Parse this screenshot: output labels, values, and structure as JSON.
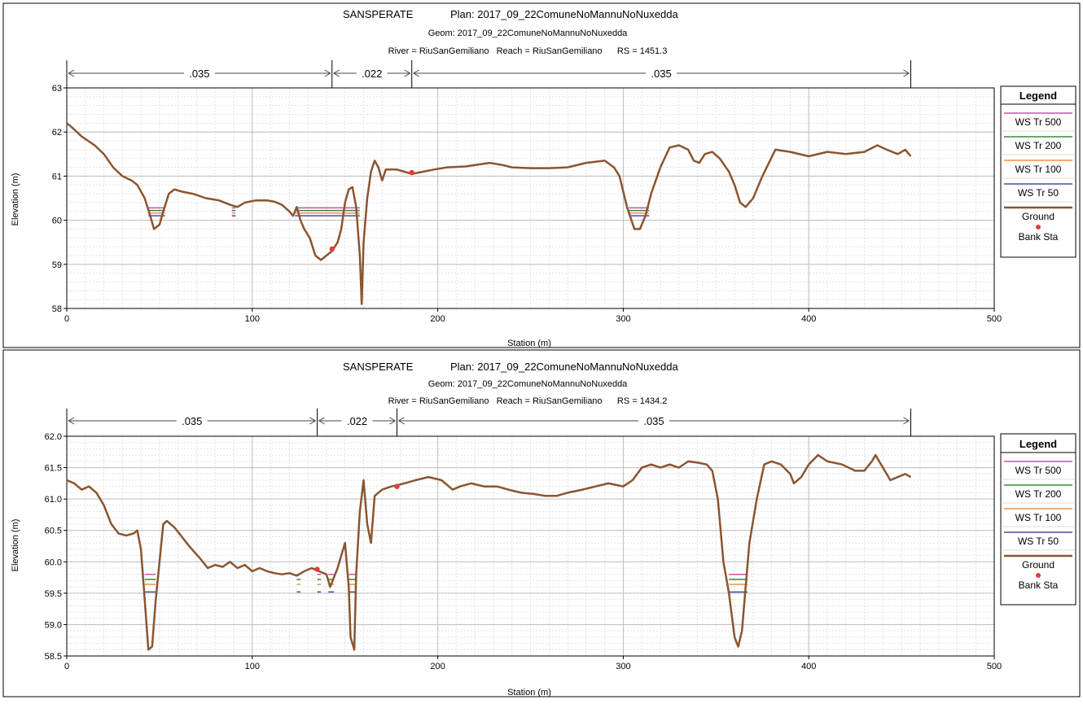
{
  "colors": {
    "ws500": "#c850b4",
    "ws200": "#3a8a3a",
    "ws100": "#f0904a",
    "ws50": "#4a4aa8",
    "ground": "#8a5530",
    "bank": "#e83a3a",
    "grid": "#c8c8c8"
  },
  "chart_data": [
    {
      "type": "line",
      "title": "SANSPERATE",
      "plan": "Plan: 2017_09_22ComuneNoMannuNoNuxedda",
      "geom": "Geom: 2017_09_22ComuneNoMannuNoNuxedda",
      "river_line": "River = RiuSanGemiliano   Reach = RiuSanGemiliano      RS = 1451.3",
      "xlabel": "Station (m)",
      "ylabel": "Elevation (m)",
      "xlim": [
        0,
        500
      ],
      "ylim": [
        58,
        63
      ],
      "x_ticks": [
        "0",
        "100",
        "200",
        "300",
        "400",
        "500"
      ],
      "y_ticks": [
        "58",
        "59",
        "60",
        "61",
        "62",
        "63"
      ],
      "y_tick_values": [
        58,
        59,
        60,
        61,
        62,
        63
      ],
      "grid": true,
      "legend_title": "Legend",
      "legend": [
        "WS Tr 500",
        "WS Tr 200",
        "WS Tr 100",
        "WS Tr 50",
        "Ground",
        "Bank Sta"
      ],
      "mannings": [
        {
          "label": ".035",
          "from": 0,
          "to": 143
        },
        {
          "label": ".022",
          "from": 143,
          "to": 186
        },
        {
          "label": ".035",
          "from": 186,
          "to": 455
        }
      ],
      "ground": [
        [
          0,
          62.2
        ],
        [
          3,
          62.1
        ],
        [
          8,
          61.9
        ],
        [
          15,
          61.7
        ],
        [
          20,
          61.5
        ],
        [
          25,
          61.2
        ],
        [
          30,
          61.0
        ],
        [
          35,
          60.9
        ],
        [
          38,
          60.8
        ],
        [
          42,
          60.5
        ],
        [
          45,
          60.1
        ],
        [
          47,
          59.8
        ],
        [
          50,
          59.9
        ],
        [
          52,
          60.2
        ],
        [
          55,
          60.6
        ],
        [
          58,
          60.7
        ],
        [
          62,
          60.65
        ],
        [
          68,
          60.6
        ],
        [
          75,
          60.5
        ],
        [
          82,
          60.45
        ],
        [
          88,
          60.35
        ],
        [
          92,
          60.3
        ],
        [
          96,
          60.4
        ],
        [
          102,
          60.45
        ],
        [
          108,
          60.45
        ],
        [
          112,
          60.42
        ],
        [
          116,
          60.35
        ],
        [
          120,
          60.2
        ],
        [
          122,
          60.1
        ],
        [
          124,
          60.3
        ],
        [
          126,
          60.0
        ],
        [
          128,
          59.8
        ],
        [
          131,
          59.6
        ],
        [
          134,
          59.2
        ],
        [
          137,
          59.1
        ],
        [
          140,
          59.2
        ],
        [
          143,
          59.3
        ],
        [
          146,
          59.5
        ],
        [
          148,
          59.8
        ],
        [
          150,
          60.4
        ],
        [
          152,
          60.7
        ],
        [
          154,
          60.75
        ],
        [
          156,
          60.3
        ],
        [
          158,
          59.2
        ],
        [
          159,
          58.1
        ],
        [
          160,
          59.5
        ],
        [
          162,
          60.5
        ],
        [
          164,
          61.1
        ],
        [
          166,
          61.35
        ],
        [
          168,
          61.2
        ],
        [
          170,
          60.9
        ],
        [
          172,
          61.15
        ],
        [
          178,
          61.15
        ],
        [
          182,
          61.1
        ],
        [
          186,
          61.05
        ],
        [
          192,
          61.1
        ],
        [
          198,
          61.15
        ],
        [
          205,
          61.2
        ],
        [
          215,
          61.22
        ],
        [
          228,
          61.3
        ],
        [
          235,
          61.25
        ],
        [
          240,
          61.2
        ],
        [
          250,
          61.18
        ],
        [
          260,
          61.18
        ],
        [
          270,
          61.2
        ],
        [
          280,
          61.3
        ],
        [
          290,
          61.35
        ],
        [
          295,
          61.2
        ],
        [
          298,
          61.0
        ],
        [
          302,
          60.3
        ],
        [
          306,
          59.8
        ],
        [
          309,
          59.8
        ],
        [
          312,
          60.1
        ],
        [
          315,
          60.6
        ],
        [
          320,
          61.2
        ],
        [
          325,
          61.65
        ],
        [
          330,
          61.7
        ],
        [
          335,
          61.6
        ],
        [
          338,
          61.35
        ],
        [
          341,
          61.3
        ],
        [
          344,
          61.5
        ],
        [
          348,
          61.55
        ],
        [
          352,
          61.4
        ],
        [
          357,
          61.1
        ],
        [
          360,
          60.8
        ],
        [
          363,
          60.4
        ],
        [
          366,
          60.3
        ],
        [
          370,
          60.5
        ],
        [
          375,
          61.0
        ],
        [
          382,
          61.6
        ],
        [
          390,
          61.55
        ],
        [
          400,
          61.45
        ],
        [
          410,
          61.55
        ],
        [
          420,
          61.5
        ],
        [
          430,
          61.55
        ],
        [
          437,
          61.7
        ],
        [
          442,
          61.6
        ],
        [
          448,
          61.5
        ],
        [
          452,
          61.6
        ],
        [
          455,
          61.45
        ]
      ],
      "ws_levels": [
        60.28,
        60.22,
        60.16,
        60.1
      ],
      "ws_segments": [
        [
          44,
          53
        ],
        [
          89,
          91
        ],
        [
          123,
          158
        ],
        [
          303,
          314
        ]
      ],
      "bank_stations": [
        [
          143,
          59.35
        ],
        [
          186,
          61.08
        ]
      ]
    },
    {
      "type": "line",
      "title": "SANSPERATE",
      "plan": "Plan: 2017_09_22ComuneNoMannuNoNuxedda",
      "geom": "Geom: 2017_09_22ComuneNoMannuNoNuxedda",
      "river_line": "River = RiuSanGemiliano   Reach = RiuSanGemiliano      RS = 1434.2",
      "xlabel": "Station (m)",
      "ylabel": "Elevation (m)",
      "xlim": [
        0,
        500
      ],
      "ylim": [
        58.5,
        62.0
      ],
      "x_ticks": [
        "0",
        "100",
        "200",
        "300",
        "400",
        "500"
      ],
      "y_ticks": [
        "58.5",
        "59.0",
        "59.5",
        "60.0",
        "60.5",
        "61.0",
        "61.5",
        "62.0"
      ],
      "y_tick_values": [
        58.5,
        59.0,
        59.5,
        60.0,
        60.5,
        61.0,
        61.5,
        62.0
      ],
      "grid": true,
      "legend_title": "Legend",
      "legend": [
        "WS Tr 500",
        "WS Tr 200",
        "WS Tr 100",
        "WS Tr 50",
        "Ground",
        "Bank Sta"
      ],
      "mannings": [
        {
          "label": ".035",
          "from": 0,
          "to": 135
        },
        {
          "label": ".022",
          "from": 135,
          "to": 178
        },
        {
          "label": ".035",
          "from": 178,
          "to": 455
        }
      ],
      "ground": [
        [
          0,
          61.3
        ],
        [
          4,
          61.25
        ],
        [
          8,
          61.15
        ],
        [
          12,
          61.2
        ],
        [
          16,
          61.1
        ],
        [
          20,
          60.9
        ],
        [
          24,
          60.6
        ],
        [
          28,
          60.45
        ],
        [
          32,
          60.42
        ],
        [
          36,
          60.45
        ],
        [
          38,
          60.5
        ],
        [
          40,
          60.2
        ],
        [
          42,
          59.4
        ],
        [
          44,
          58.6
        ],
        [
          46,
          58.65
        ],
        [
          48,
          59.4
        ],
        [
          50,
          60.0
        ],
        [
          52,
          60.6
        ],
        [
          54,
          60.65
        ],
        [
          58,
          60.55
        ],
        [
          62,
          60.4
        ],
        [
          66,
          60.25
        ],
        [
          72,
          60.05
        ],
        [
          76,
          59.9
        ],
        [
          80,
          59.95
        ],
        [
          84,
          59.92
        ],
        [
          88,
          60.0
        ],
        [
          92,
          59.9
        ],
        [
          96,
          59.95
        ],
        [
          100,
          59.85
        ],
        [
          104,
          59.9
        ],
        [
          108,
          59.85
        ],
        [
          112,
          59.82
        ],
        [
          116,
          59.8
        ],
        [
          120,
          59.82
        ],
        [
          124,
          59.78
        ],
        [
          128,
          59.85
        ],
        [
          132,
          59.9
        ],
        [
          136,
          59.85
        ],
        [
          140,
          59.8
        ],
        [
          142,
          59.6
        ],
        [
          146,
          59.9
        ],
        [
          148,
          60.1
        ],
        [
          150,
          60.3
        ],
        [
          152,
          59.6
        ],
        [
          153,
          58.8
        ],
        [
          155,
          58.6
        ],
        [
          156,
          59.8
        ],
        [
          158,
          60.8
        ],
        [
          160,
          61.3
        ],
        [
          162,
          60.6
        ],
        [
          164,
          60.3
        ],
        [
          166,
          61.05
        ],
        [
          170,
          61.15
        ],
        [
          175,
          61.2
        ],
        [
          178,
          61.22
        ],
        [
          182,
          61.25
        ],
        [
          188,
          61.3
        ],
        [
          195,
          61.35
        ],
        [
          202,
          61.3
        ],
        [
          208,
          61.15
        ],
        [
          212,
          61.2
        ],
        [
          218,
          61.25
        ],
        [
          225,
          61.2
        ],
        [
          232,
          61.2
        ],
        [
          238,
          61.15
        ],
        [
          245,
          61.1
        ],
        [
          252,
          61.08
        ],
        [
          258,
          61.05
        ],
        [
          264,
          61.05
        ],
        [
          270,
          61.1
        ],
        [
          278,
          61.15
        ],
        [
          285,
          61.2
        ],
        [
          292,
          61.25
        ],
        [
          300,
          61.2
        ],
        [
          305,
          61.3
        ],
        [
          310,
          61.5
        ],
        [
          315,
          61.55
        ],
        [
          320,
          61.5
        ],
        [
          325,
          61.55
        ],
        [
          330,
          61.5
        ],
        [
          335,
          61.6
        ],
        [
          340,
          61.58
        ],
        [
          345,
          61.55
        ],
        [
          348,
          61.45
        ],
        [
          351,
          61.0
        ],
        [
          354,
          60.0
        ],
        [
          357,
          59.5
        ],
        [
          360,
          58.8
        ],
        [
          362,
          58.65
        ],
        [
          364,
          58.9
        ],
        [
          366,
          59.6
        ],
        [
          368,
          60.3
        ],
        [
          372,
          61.0
        ],
        [
          376,
          61.55
        ],
        [
          380,
          61.6
        ],
        [
          385,
          61.55
        ],
        [
          390,
          61.4
        ],
        [
          392,
          61.25
        ],
        [
          396,
          61.35
        ],
        [
          400,
          61.55
        ],
        [
          405,
          61.7
        ],
        [
          410,
          61.6
        ],
        [
          418,
          61.55
        ],
        [
          425,
          61.45
        ],
        [
          430,
          61.45
        ],
        [
          434,
          61.6
        ],
        [
          436,
          61.7
        ],
        [
          440,
          61.5
        ],
        [
          444,
          61.3
        ],
        [
          448,
          61.35
        ],
        [
          452,
          61.4
        ],
        [
          455,
          61.35
        ]
      ],
      "ws_levels": [
        59.8,
        59.72,
        59.64,
        59.52
      ],
      "ws_segments": [
        [
          42,
          48
        ],
        [
          124,
          126
        ],
        [
          135,
          137
        ],
        [
          141,
          144
        ],
        [
          152,
          156
        ],
        [
          357,
          367
        ]
      ],
      "bank_stations": [
        [
          135,
          59.88
        ],
        [
          178,
          61.2
        ]
      ]
    }
  ]
}
